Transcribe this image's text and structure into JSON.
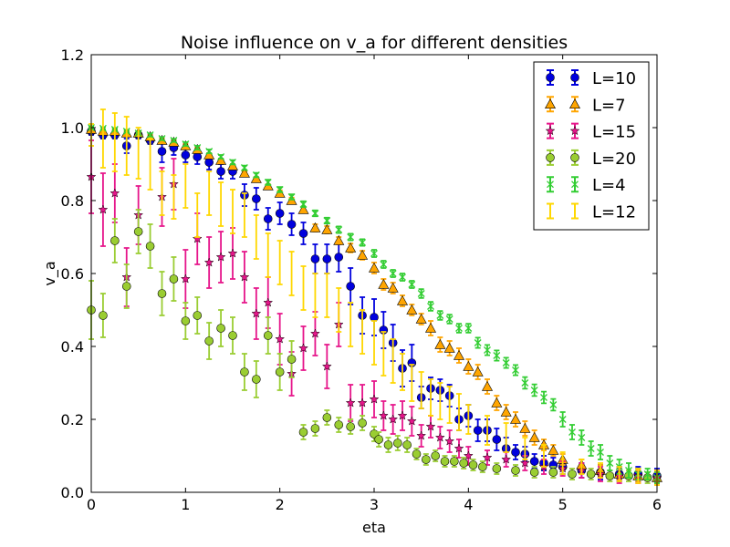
{
  "chart_data": {
    "type": "scatter",
    "title": "Noise influence on v_a for different densities",
    "xlabel": "eta",
    "ylabel": "v_a",
    "xlim": [
      0,
      6
    ],
    "ylim": [
      0,
      1.2
    ],
    "xticks": [
      "0",
      "1",
      "2",
      "3",
      "4",
      "5",
      "6"
    ],
    "yticks": [
      "0.0",
      "0.2",
      "0.4",
      "0.6",
      "0.8",
      "1.0",
      "1.2"
    ],
    "grid": false,
    "legend_position": "top-right",
    "series": [
      {
        "name": "L=10",
        "color": "#0000dd",
        "marker": "circle",
        "x": [
          0,
          0.125,
          0.25,
          0.375,
          0.5,
          0.625,
          0.75,
          0.875,
          1.0,
          1.125,
          1.25,
          1.375,
          1.5,
          1.625,
          1.75,
          1.875,
          2.0,
          2.125,
          2.25,
          2.375,
          2.5,
          2.625,
          2.75,
          2.875,
          3.0,
          3.1,
          3.2,
          3.3,
          3.4,
          3.5,
          3.6,
          3.7,
          3.8,
          3.9,
          4.0,
          4.1,
          4.2,
          4.3,
          4.4,
          4.5,
          4.6,
          4.7,
          4.8,
          4.9,
          5.0,
          5.2,
          5.4,
          5.6,
          5.8,
          6.0
        ],
        "y": [
          0.99,
          0.98,
          0.98,
          0.95,
          0.98,
          0.965,
          0.935,
          0.945,
          0.925,
          0.92,
          0.905,
          0.88,
          0.88,
          0.815,
          0.805,
          0.75,
          0.765,
          0.735,
          0.71,
          0.64,
          0.64,
          0.645,
          0.565,
          0.485,
          0.48,
          0.445,
          0.41,
          0.34,
          0.355,
          0.26,
          0.285,
          0.28,
          0.265,
          0.2,
          0.21,
          0.17,
          0.17,
          0.145,
          0.12,
          0.11,
          0.105,
          0.085,
          0.08,
          0.075,
          0.07,
          0.06,
          0.055,
          0.05,
          0.05,
          0.045
        ],
        "err": [
          0.01,
          0.01,
          0.01,
          0.02,
          0.01,
          0.01,
          0.03,
          0.02,
          0.02,
          0.02,
          0.02,
          0.02,
          0.02,
          0.03,
          0.03,
          0.03,
          0.03,
          0.03,
          0.03,
          0.04,
          0.04,
          0.04,
          0.05,
          0.05,
          0.05,
          0.05,
          0.05,
          0.05,
          0.05,
          0.03,
          0.03,
          0.03,
          0.03,
          0.03,
          0.03,
          0.03,
          0.03,
          0.03,
          0.03,
          0.02,
          0.02,
          0.02,
          0.02,
          0.02,
          0.02,
          0.02,
          0.02,
          0.02,
          0.02,
          0.02
        ]
      },
      {
        "name": "L=7",
        "color": "#ffa500",
        "marker": "triangle",
        "x": [
          0,
          0.125,
          0.25,
          0.375,
          0.5,
          0.625,
          0.75,
          0.875,
          1.0,
          1.125,
          1.25,
          1.375,
          1.5,
          1.625,
          1.75,
          1.875,
          2.0,
          2.125,
          2.25,
          2.375,
          2.5,
          2.625,
          2.75,
          2.875,
          3.0,
          3.1,
          3.2,
          3.3,
          3.4,
          3.5,
          3.6,
          3.7,
          3.8,
          3.9,
          4.0,
          4.1,
          4.2,
          4.3,
          4.4,
          4.5,
          4.6,
          4.7,
          4.8,
          4.9,
          5.0,
          5.2,
          5.4,
          5.6,
          5.8,
          6.0
        ],
        "y": [
          0.995,
          0.99,
          0.99,
          0.985,
          0.985,
          0.975,
          0.965,
          0.96,
          0.95,
          0.94,
          0.925,
          0.91,
          0.895,
          0.875,
          0.86,
          0.84,
          0.82,
          0.8,
          0.775,
          0.725,
          0.72,
          0.69,
          0.67,
          0.65,
          0.615,
          0.57,
          0.56,
          0.525,
          0.5,
          0.475,
          0.45,
          0.405,
          0.395,
          0.375,
          0.345,
          0.33,
          0.29,
          0.245,
          0.22,
          0.2,
          0.175,
          0.15,
          0.13,
          0.115,
          0.09,
          0.075,
          0.06,
          0.05,
          0.045,
          0.04
        ],
        "err": [
          0.005,
          0.005,
          0.005,
          0.005,
          0.005,
          0.005,
          0.005,
          0.005,
          0.005,
          0.005,
          0.005,
          0.005,
          0.005,
          0.005,
          0.005,
          0.005,
          0.008,
          0.008,
          0.008,
          0.01,
          0.01,
          0.01,
          0.012,
          0.012,
          0.015,
          0.015,
          0.015,
          0.015,
          0.015,
          0.015,
          0.02,
          0.02,
          0.02,
          0.02,
          0.02,
          0.02,
          0.02,
          0.02,
          0.02,
          0.02,
          0.02,
          0.02,
          0.015,
          0.015,
          0.015,
          0.015,
          0.015,
          0.015,
          0.015,
          0.015
        ]
      },
      {
        "name": "L=15",
        "color": "#e6158a",
        "marker": "star",
        "x": [
          0,
          0.125,
          0.25,
          0.375,
          0.5,
          0.75,
          0.875,
          1.0,
          1.125,
          1.25,
          1.375,
          1.5,
          1.625,
          1.75,
          1.875,
          2.0,
          2.125,
          2.25,
          2.375,
          2.5,
          2.625,
          2.75,
          2.875,
          3.0,
          3.1,
          3.2,
          3.3,
          3.4,
          3.5,
          3.6,
          3.7,
          3.8,
          3.9,
          4.0,
          4.2,
          4.4,
          4.6,
          4.8,
          5.0,
          5.2,
          5.4,
          5.6,
          5.8,
          6.0
        ],
        "y": [
          0.865,
          0.775,
          0.82,
          0.59,
          0.76,
          0.81,
          0.845,
          0.585,
          0.695,
          0.63,
          0.645,
          0.655,
          0.59,
          0.49,
          0.52,
          0.42,
          0.325,
          0.395,
          0.435,
          0.345,
          0.46,
          0.245,
          0.245,
          0.255,
          0.21,
          0.2,
          0.21,
          0.195,
          0.155,
          0.18,
          0.15,
          0.14,
          0.12,
          0.1,
          0.095,
          0.09,
          0.08,
          0.07,
          0.065,
          0.06,
          0.05,
          0.045,
          0.045,
          0.04
        ],
        "err": [
          0.1,
          0.1,
          0.08,
          0.08,
          0.08,
          0.08,
          0.07,
          0.08,
          0.07,
          0.07,
          0.07,
          0.07,
          0.07,
          0.07,
          0.07,
          0.07,
          0.06,
          0.06,
          0.06,
          0.06,
          0.06,
          0.05,
          0.05,
          0.05,
          0.04,
          0.04,
          0.04,
          0.04,
          0.03,
          0.03,
          0.03,
          0.03,
          0.025,
          0.025,
          0.02,
          0.02,
          0.02,
          0.02,
          0.02,
          0.02,
          0.02,
          0.02,
          0.02,
          0.02
        ]
      },
      {
        "name": "L=20",
        "color": "#9acd32",
        "marker": "circle",
        "x": [
          0,
          0.125,
          0.25,
          0.375,
          0.5,
          0.625,
          0.75,
          0.875,
          1.0,
          1.125,
          1.25,
          1.375,
          1.5,
          1.625,
          1.75,
          1.875,
          2.0,
          2.125,
          2.25,
          2.375,
          2.5,
          2.625,
          2.75,
          2.875,
          3.0,
          3.05,
          3.15,
          3.25,
          3.35,
          3.45,
          3.55,
          3.65,
          3.75,
          3.85,
          3.95,
          4.05,
          4.15,
          4.3,
          4.5,
          4.7,
          4.9,
          5.1,
          5.3,
          5.5,
          5.7,
          5.9
        ],
        "y": [
          0.5,
          0.485,
          0.69,
          0.565,
          0.715,
          0.675,
          0.545,
          0.585,
          0.47,
          0.485,
          0.415,
          0.45,
          0.43,
          0.33,
          0.31,
          0.43,
          0.33,
          0.365,
          0.165,
          0.175,
          0.205,
          0.185,
          0.18,
          0.19,
          0.16,
          0.145,
          0.13,
          0.135,
          0.13,
          0.105,
          0.09,
          0.1,
          0.085,
          0.085,
          0.08,
          0.075,
          0.07,
          0.065,
          0.06,
          0.055,
          0.055,
          0.05,
          0.05,
          0.045,
          0.045,
          0.04
        ],
        "err": [
          0.08,
          0.06,
          0.06,
          0.06,
          0.06,
          0.06,
          0.06,
          0.06,
          0.05,
          0.05,
          0.05,
          0.05,
          0.05,
          0.05,
          0.05,
          0.05,
          0.05,
          0.05,
          0.02,
          0.02,
          0.02,
          0.02,
          0.02,
          0.02,
          0.02,
          0.02,
          0.02,
          0.02,
          0.02,
          0.015,
          0.015,
          0.015,
          0.015,
          0.015,
          0.015,
          0.015,
          0.015,
          0.015,
          0.015,
          0.015,
          0.015,
          0.015,
          0.015,
          0.015,
          0.015,
          0.015
        ]
      },
      {
        "name": "L=4",
        "color": "#32cd32",
        "marker": "x",
        "x": [
          0,
          0.125,
          0.25,
          0.375,
          0.5,
          0.625,
          0.75,
          0.875,
          1.0,
          1.125,
          1.25,
          1.375,
          1.5,
          1.625,
          1.75,
          1.875,
          2.0,
          2.125,
          2.25,
          2.375,
          2.5,
          2.625,
          2.75,
          2.875,
          3.0,
          3.1,
          3.2,
          3.3,
          3.4,
          3.5,
          3.6,
          3.7,
          3.8,
          3.9,
          4.0,
          4.1,
          4.2,
          4.3,
          4.4,
          4.5,
          4.6,
          4.7,
          4.8,
          4.9,
          5.0,
          5.1,
          5.2,
          5.3,
          5.4,
          5.5,
          5.6,
          5.7,
          5.8,
          5.9,
          6.0
        ],
        "y": [
          1.0,
          0.998,
          0.995,
          0.99,
          0.985,
          0.98,
          0.97,
          0.965,
          0.955,
          0.945,
          0.935,
          0.92,
          0.905,
          0.89,
          0.87,
          0.85,
          0.83,
          0.81,
          0.79,
          0.765,
          0.745,
          0.72,
          0.7,
          0.685,
          0.655,
          0.625,
          0.6,
          0.59,
          0.57,
          0.545,
          0.51,
          0.485,
          0.475,
          0.45,
          0.45,
          0.41,
          0.39,
          0.375,
          0.355,
          0.335,
          0.3,
          0.28,
          0.26,
          0.24,
          0.2,
          0.165,
          0.15,
          0.12,
          0.11,
          0.08,
          0.07,
          0.06,
          0.05,
          0.05,
          0.04
        ],
        "err": [
          0.003,
          0.003,
          0.003,
          0.003,
          0.003,
          0.004,
          0.004,
          0.004,
          0.005,
          0.005,
          0.005,
          0.005,
          0.006,
          0.006,
          0.006,
          0.007,
          0.007,
          0.007,
          0.008,
          0.008,
          0.008,
          0.009,
          0.009,
          0.009,
          0.01,
          0.01,
          0.01,
          0.01,
          0.01,
          0.012,
          0.012,
          0.012,
          0.012,
          0.012,
          0.012,
          0.014,
          0.014,
          0.014,
          0.014,
          0.014,
          0.016,
          0.016,
          0.016,
          0.016,
          0.02,
          0.02,
          0.02,
          0.02,
          0.02,
          0.02,
          0.02,
          0.02,
          0.015,
          0.015,
          0.015
        ]
      },
      {
        "name": "L=12",
        "color": "#ffd700",
        "marker": "none",
        "x": [
          0,
          0.125,
          0.25,
          0.375,
          0.5,
          0.625,
          0.75,
          0.875,
          1.0,
          1.125,
          1.25,
          1.375,
          1.5,
          1.625,
          1.75,
          1.875,
          2.0,
          2.125,
          2.25,
          2.375,
          2.5,
          2.625,
          2.75,
          2.875,
          3.0,
          3.1,
          3.2,
          3.3,
          3.4,
          3.5,
          3.6,
          3.7,
          3.8,
          3.9,
          4.0,
          4.2,
          4.4,
          4.6,
          4.8,
          5.0,
          5.2,
          5.4,
          5.6,
          5.8,
          6.0
        ],
        "y": [
          0.98,
          0.97,
          0.96,
          0.95,
          0.93,
          0.9,
          0.82,
          0.81,
          0.84,
          0.76,
          0.82,
          0.79,
          0.77,
          0.76,
          0.7,
          0.65,
          0.63,
          0.6,
          0.56,
          0.54,
          0.54,
          0.5,
          0.46,
          0.44,
          0.41,
          0.38,
          0.36,
          0.33,
          0.3,
          0.28,
          0.26,
          0.25,
          0.24,
          0.22,
          0.2,
          0.17,
          0.15,
          0.12,
          0.1,
          0.08,
          0.07,
          0.06,
          0.05,
          0.045,
          0.04
        ],
        "err": [
          0.03,
          0.08,
          0.08,
          0.08,
          0.07,
          0.07,
          0.06,
          0.06,
          0.06,
          0.06,
          0.06,
          0.06,
          0.06,
          0.06,
          0.06,
          0.06,
          0.06,
          0.06,
          0.06,
          0.06,
          0.06,
          0.06,
          0.06,
          0.06,
          0.06,
          0.06,
          0.06,
          0.05,
          0.05,
          0.05,
          0.05,
          0.05,
          0.05,
          0.05,
          0.04,
          0.04,
          0.04,
          0.03,
          0.03,
          0.03,
          0.02,
          0.02,
          0.02,
          0.02,
          0.02
        ]
      }
    ]
  }
}
